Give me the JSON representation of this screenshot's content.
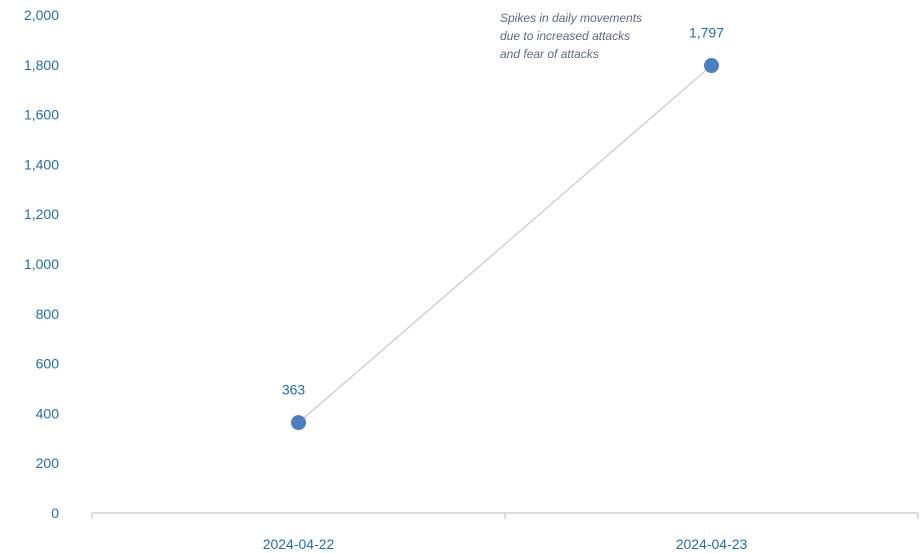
{
  "chart_data": {
    "type": "line",
    "x": [
      "2024-04-22",
      "2024-04-23"
    ],
    "series": [
      {
        "values": [
          363,
          1797
        ]
      }
    ],
    "data_labels": [
      "363",
      "1,797"
    ],
    "ylim": [
      0,
      2000
    ],
    "yticks": [
      0,
      200,
      400,
      600,
      800,
      1000,
      1200,
      1400,
      1600,
      1800,
      2000
    ],
    "ytick_labels": [
      "0",
      "200",
      "400",
      "600",
      "800",
      "1,000",
      "1,200",
      "1,400",
      "1,600",
      "1,800",
      "2,000"
    ],
    "annotation": [
      "Spikes in daily movements",
      "due to increased attacks",
      "and fear of attacks"
    ],
    "grid": false,
    "legend": "none",
    "colors": {
      "marker": "#4a7fc1",
      "line": "#c8c8c8",
      "axis_text": "#1f6fad",
      "annotation_text": "#5a6a8a",
      "axis_line": "#d0d0d0"
    }
  }
}
